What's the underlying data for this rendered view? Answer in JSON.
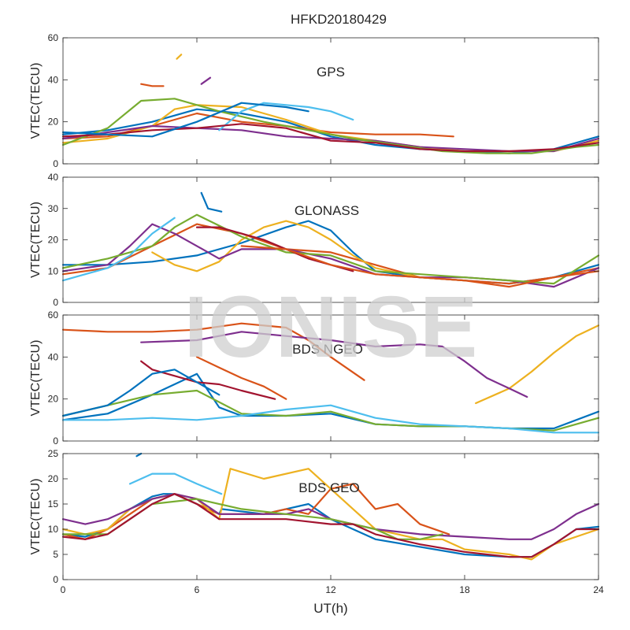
{
  "title": "HFKD20180429",
  "watermark": "IONISE",
  "xlabel": "UT(h)",
  "colors": [
    "#0072BD",
    "#D95319",
    "#EDB120",
    "#7E2F8E",
    "#77AC30",
    "#4DBEEE",
    "#A2142F"
  ],
  "chart_data": [
    {
      "type": "line",
      "panel_label": "GPS",
      "ylabel": "VTEC(TECU)",
      "xlim": [
        0,
        24
      ],
      "ylim": [
        0,
        60
      ],
      "xticks": [
        0,
        6,
        12,
        18,
        24
      ],
      "yticks": [
        0,
        20,
        40,
        60
      ],
      "grid": false,
      "series": [
        {
          "x": [
            0,
            2,
            4,
            6,
            8,
            10,
            12,
            14,
            16,
            18,
            20,
            22,
            24
          ],
          "y": [
            14,
            16,
            20,
            26,
            24,
            20,
            13,
            9,
            7,
            6,
            5,
            7,
            13
          ]
        },
        {
          "x": [
            0,
            2,
            4,
            6,
            8,
            10,
            12,
            14,
            16,
            17.5
          ],
          "y": [
            12,
            13,
            18,
            24,
            20,
            18,
            15,
            14,
            14,
            13
          ]
        },
        {
          "x": [
            0,
            2,
            4,
            5,
            6,
            8,
            10,
            12,
            14,
            16,
            18,
            20,
            22,
            24
          ],
          "y": [
            10,
            12,
            18,
            26,
            28,
            27,
            21,
            14,
            11,
            8,
            6,
            6,
            6,
            11
          ]
        },
        {
          "x": [
            0,
            2,
            4,
            6,
            8,
            10,
            12,
            14,
            16,
            18,
            20,
            22,
            24
          ],
          "y": [
            12,
            15,
            18,
            17,
            16,
            13,
            12,
            11,
            8,
            7,
            6,
            6,
            12
          ]
        },
        {
          "x": [
            0,
            2,
            3.5,
            5,
            7,
            9,
            11,
            13,
            15,
            17,
            19,
            21,
            23,
            24
          ],
          "y": [
            9,
            17,
            30,
            31,
            25,
            20,
            16,
            12,
            9,
            6,
            5,
            5,
            8,
            9
          ]
        },
        {
          "x": [
            7,
            8,
            9,
            10,
            11,
            12,
            13
          ],
          "y": [
            16,
            25,
            29,
            28,
            27,
            25,
            21
          ]
        },
        {
          "x": [
            0,
            2,
            4,
            6,
            8,
            10,
            12,
            14,
            16,
            18,
            20,
            22,
            24
          ],
          "y": [
            13,
            14,
            16,
            17,
            19,
            17,
            11,
            10,
            7,
            6,
            6,
            7,
            10
          ]
        },
        {
          "x": [
            0,
            2,
            4,
            6,
            8,
            10,
            11
          ],
          "y": [
            15,
            14,
            13,
            20,
            29,
            27,
            25
          ]
        },
        {
          "x": [
            3.5,
            4,
            4.5
          ],
          "y": [
            38,
            37,
            37
          ]
        },
        {
          "x": [
            5.1,
            5.3
          ],
          "y": [
            50,
            52
          ]
        },
        {
          "x": [
            6.2,
            6.6
          ],
          "y": [
            38,
            41
          ]
        }
      ]
    },
    {
      "type": "line",
      "panel_label": "GLONASS",
      "ylabel": "VTEC(TECU)",
      "xlim": [
        0,
        24
      ],
      "ylim": [
        0,
        40
      ],
      "xticks": [
        0,
        6,
        12,
        18,
        24
      ],
      "yticks": [
        0,
        10,
        20,
        30,
        40
      ],
      "grid": false,
      "series": [
        {
          "x": [
            0,
            2,
            4,
            6,
            8,
            10,
            11,
            12,
            13,
            14,
            16,
            18,
            20,
            22,
            24
          ],
          "y": [
            12,
            12,
            13,
            15,
            19,
            24,
            26,
            23,
            16,
            10,
            8,
            7,
            6,
            8,
            12
          ]
        },
        {
          "x": [
            0,
            2,
            4,
            6,
            8,
            10,
            12,
            14,
            16,
            18,
            20,
            22,
            24
          ],
          "y": [
            9,
            11,
            18,
            25,
            22,
            17,
            16,
            12,
            8,
            7,
            6,
            8,
            11
          ]
        },
        {
          "x": [
            4,
            5,
            6,
            7,
            8,
            9,
            10,
            11,
            12,
            13,
            14,
            16,
            18
          ],
          "y": [
            16,
            12,
            10,
            13,
            20,
            24,
            26,
            24,
            20,
            15,
            11,
            8,
            7
          ]
        },
        {
          "x": [
            0,
            2,
            3,
            4,
            5,
            6,
            7,
            8,
            10,
            12,
            14,
            16,
            18,
            20,
            22,
            24
          ],
          "y": [
            10,
            12,
            18,
            25,
            22,
            18,
            14,
            17,
            17,
            14,
            9,
            8,
            8,
            7,
            5,
            11
          ]
        },
        {
          "x": [
            0,
            2,
            4,
            5,
            6,
            8,
            10,
            12,
            14,
            16,
            18,
            20,
            22,
            24
          ],
          "y": [
            11,
            14,
            18,
            24,
            28,
            21,
            16,
            15,
            10,
            9,
            8,
            7,
            6,
            15
          ]
        },
        {
          "x": [
            0,
            1,
            2,
            3,
            4,
            5
          ],
          "y": [
            7,
            9,
            11,
            15,
            22,
            27
          ]
        },
        {
          "x": [
            6,
            7,
            8,
            9,
            10,
            11,
            12,
            13
          ],
          "y": [
            24,
            24,
            22,
            20,
            17,
            14,
            12,
            10
          ]
        },
        {
          "x": [
            6.2,
            6.5,
            7.1
          ],
          "y": [
            35,
            30,
            29
          ]
        },
        {
          "x": [
            8,
            10,
            12,
            14,
            16,
            18,
            20,
            22,
            24
          ],
          "y": [
            18,
            17,
            12,
            9,
            8,
            7,
            5,
            8,
            10
          ]
        }
      ]
    },
    {
      "type": "line",
      "panel_label": "BDS NGEO",
      "ylabel": "VTEC(TECU)",
      "xlim": [
        0,
        24
      ],
      "ylim": [
        0,
        60
      ],
      "xticks": [
        0,
        6,
        12,
        18,
        24
      ],
      "yticks": [
        0,
        20,
        40,
        60
      ],
      "grid": false,
      "series": [
        {
          "x": [
            0,
            2,
            4,
            6,
            7,
            8,
            10,
            12,
            14,
            16,
            18,
            20,
            22,
            24
          ],
          "y": [
            10,
            13,
            22,
            32,
            16,
            12,
            12,
            13,
            8,
            7,
            7,
            6,
            6,
            14
          ]
        },
        {
          "x": [
            0,
            2,
            4,
            6,
            8,
            10,
            11,
            12,
            13.5
          ],
          "y": [
            53,
            52,
            52,
            53,
            56,
            54,
            48,
            40,
            29
          ]
        },
        {
          "x": [
            18.5,
            20,
            21,
            22,
            23,
            24
          ],
          "y": [
            18,
            25,
            33,
            42,
            50,
            55
          ]
        },
        {
          "x": [
            3.5,
            6,
            8,
            10,
            12,
            14,
            16,
            17,
            18,
            19,
            20,
            20.8
          ],
          "y": [
            47,
            48,
            52,
            50,
            48,
            45,
            46,
            45,
            38,
            30,
            25,
            21
          ]
        },
        {
          "x": [
            0,
            2,
            4,
            6,
            8,
            10,
            12,
            14,
            16,
            18,
            20,
            22,
            24
          ],
          "y": [
            12,
            17,
            22,
            24,
            13,
            12,
            14,
            8,
            7,
            7,
            6,
            5,
            11
          ]
        },
        {
          "x": [
            0,
            2,
            4,
            6,
            8,
            10,
            12,
            14,
            16,
            18,
            20,
            22,
            24
          ],
          "y": [
            10,
            10,
            11,
            10,
            12,
            15,
            17,
            11,
            8,
            7,
            6,
            4,
            4
          ]
        },
        {
          "x": [
            3.5,
            4,
            5,
            6,
            7,
            8,
            9.5
          ],
          "y": [
            38,
            34,
            31,
            28,
            27,
            24,
            20
          ]
        },
        {
          "x": [
            0,
            2,
            3,
            4,
            5,
            6,
            7
          ],
          "y": [
            12,
            17,
            24,
            32,
            34,
            28,
            22
          ]
        },
        {
          "x": [
            6,
            7,
            8,
            9,
            10
          ],
          "y": [
            40,
            35,
            30,
            26,
            20
          ]
        }
      ]
    },
    {
      "type": "line",
      "panel_label": "BDS GEO",
      "ylabel": "VTEC(TECU)",
      "xlim": [
        0,
        24
      ],
      "ylim": [
        0,
        25
      ],
      "xticks": [
        0,
        6,
        12,
        18,
        24
      ],
      "yticks": [
        0,
        5,
        10,
        15,
        20,
        25
      ],
      "grid": false,
      "series": [
        {
          "x": [
            0,
            1,
            2,
            3,
            4,
            4.5,
            5,
            6,
            7,
            7.1,
            9,
            10,
            11,
            12,
            14,
            16,
            18,
            20,
            21,
            22,
            23,
            24
          ],
          "y": [
            9,
            8.5,
            10,
            14,
            16.5,
            17,
            17,
            15,
            13,
            14,
            13,
            14,
            15,
            12,
            8,
            6.5,
            5,
            4.5,
            4.5,
            7,
            10,
            10.5
          ]
        },
        {
          "x": [
            0,
            1,
            2,
            3,
            4,
            5,
            6,
            7,
            8,
            9,
            10,
            11,
            12,
            13,
            14,
            15,
            16,
            17.3
          ],
          "y": [
            9,
            8,
            10,
            13,
            16,
            17,
            15,
            13,
            13,
            13,
            14,
            13,
            18,
            19,
            14,
            15,
            11,
            9
          ]
        },
        {
          "x": [
            0,
            1,
            2,
            3,
            4,
            5,
            6,
            7,
            7.5,
            9,
            11,
            12,
            13,
            14,
            15,
            16,
            17,
            18,
            20,
            21,
            22,
            24
          ],
          "y": [
            10,
            9,
            10,
            14,
            16,
            17,
            16,
            12,
            22,
            20,
            22,
            18,
            14,
            10,
            9,
            8,
            8,
            6,
            5,
            4,
            7,
            10
          ]
        },
        {
          "x": [
            0,
            1,
            2,
            3,
            4,
            5,
            6,
            7,
            8,
            10,
            11,
            12,
            14,
            16,
            18,
            20,
            21,
            22,
            23,
            24
          ],
          "y": [
            12,
            11,
            12,
            14,
            16,
            17,
            16,
            13,
            13,
            13,
            14,
            12,
            10,
            9,
            8.5,
            8,
            8,
            10,
            13,
            15
          ]
        },
        {
          "x": [
            0,
            2,
            4,
            6,
            8,
            10,
            12,
            13,
            14,
            15,
            16,
            17
          ],
          "y": [
            9,
            9,
            15,
            16,
            14,
            13,
            12,
            11,
            10,
            8,
            8,
            9
          ]
        },
        {
          "x": [
            3,
            4,
            5,
            6,
            7.1
          ],
          "y": [
            19,
            21,
            21,
            19,
            17
          ]
        },
        {
          "x": [
            0,
            1,
            2,
            3,
            4,
            5,
            6,
            7,
            8,
            10,
            12,
            13,
            14,
            16,
            18,
            20,
            21,
            22,
            23,
            24
          ],
          "y": [
            8.5,
            8,
            9,
            12,
            15,
            17,
            15,
            12,
            12,
            12,
            11,
            11,
            9,
            7,
            5.5,
            4.5,
            4.5,
            7,
            10,
            10
          ]
        },
        {
          "x": [
            3.3,
            3.5
          ],
          "y": [
            24.5,
            25
          ]
        }
      ]
    }
  ]
}
